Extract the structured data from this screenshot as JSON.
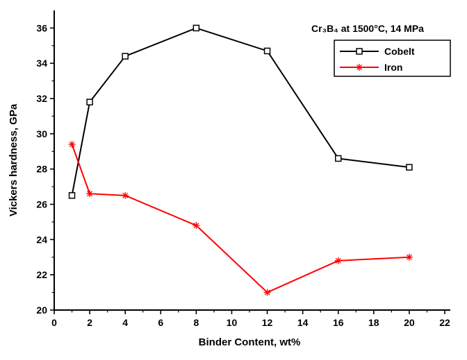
{
  "chart_data": {
    "type": "line",
    "annotation": "Cr₃B₄ at 1500°C, 14 MPa",
    "xlabel": "Binder Content, wt%",
    "ylabel": "Vickers hardness, GPa",
    "xlim": [
      0,
      22
    ],
    "ylim": [
      20,
      37
    ],
    "xticks": [
      0,
      2,
      4,
      6,
      8,
      10,
      12,
      14,
      16,
      18,
      20,
      22
    ],
    "yticks": [
      20,
      22,
      24,
      26,
      28,
      30,
      32,
      34,
      36
    ],
    "x": [
      1,
      2,
      4,
      8,
      12,
      16,
      20
    ],
    "series": [
      {
        "name": "Cobelt",
        "color": "#000000",
        "marker": "square",
        "values": [
          26.5,
          31.8,
          34.4,
          36.0,
          34.7,
          28.6,
          28.1
        ]
      },
      {
        "name": "Iron",
        "color": "#ff0000",
        "marker": "asterisk",
        "values": [
          29.4,
          26.6,
          26.5,
          24.8,
          21.0,
          22.8,
          23.0
        ]
      }
    ],
    "legend_position": "top-right",
    "grid": false,
    "background": "#ffffff",
    "axis_color": "#000000"
  }
}
